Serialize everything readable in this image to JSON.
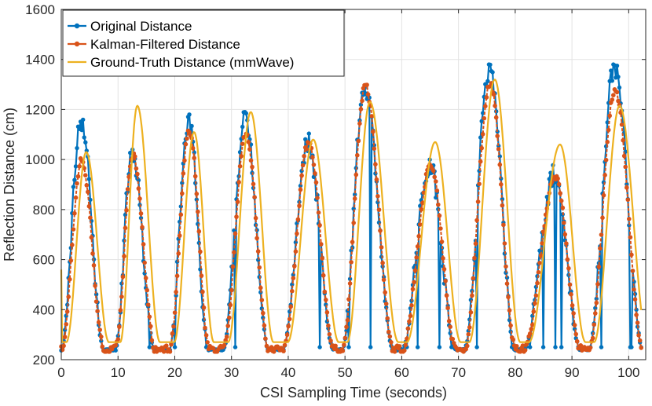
{
  "chart_data": {
    "type": "line",
    "xlabel": "CSI Sampling Time (seconds)",
    "ylabel": "Reflection Distance (cm)",
    "xlim": [
      0,
      103
    ],
    "ylim": [
      200,
      1600
    ],
    "xticks": [
      0,
      10,
      20,
      30,
      40,
      50,
      60,
      70,
      80,
      90,
      100
    ],
    "yticks": [
      200,
      400,
      600,
      800,
      1000,
      1200,
      1400,
      1600
    ],
    "grid": true,
    "legend_position": "top-left",
    "cycles": [
      {
        "start": 0.0,
        "peak": 3.5,
        "end": 7.5,
        "orig": 1160,
        "kal": 1000,
        "gt": 1000
      },
      {
        "start": 9.5,
        "peak": 12.5,
        "end": 16.5,
        "orig": 1020,
        "kal": 1020,
        "gt": 1185
      },
      {
        "start": 19.0,
        "peak": 22.5,
        "end": 26.0,
        "orig": 1140,
        "kal": 1120,
        "gt": 1080
      },
      {
        "start": 28.5,
        "peak": 32.5,
        "end": 36.5,
        "orig": 1165,
        "kal": 1110,
        "gt": 1160
      },
      {
        "start": 39.0,
        "peak": 43.5,
        "end": 48.0,
        "orig": 1070,
        "kal": 1065,
        "gt": 1050
      },
      {
        "start": 49.5,
        "peak": 53.5,
        "end": 58.5,
        "orig": 1300,
        "kal": 1300,
        "gt": 1200
      },
      {
        "start": 60.0,
        "peak": 65.0,
        "end": 69.5,
        "orig": 980,
        "kal": 975,
        "gt": 1040
      },
      {
        "start": 71.0,
        "peak": 75.5,
        "end": 80.0,
        "orig": 1370,
        "kal": 1310,
        "gt": 1290
      },
      {
        "start": 81.5,
        "peak": 87.0,
        "end": 91.5,
        "orig": 940,
        "kal": 930,
        "gt": 1030
      },
      {
        "start": 93.0,
        "peak": 97.5,
        "end": 102.5,
        "orig": 1370,
        "kal": 1280,
        "gt": 1185
      }
    ],
    "series": [
      {
        "name": "Original Distance",
        "color": "#0072BD",
        "marker": "circle"
      },
      {
        "name": "Kalman-Filtered Distance",
        "color": "#D95319",
        "marker": "circle"
      },
      {
        "name": "Ground-Truth Distance (mmWave)",
        "color": "#EDB120",
        "marker": "none"
      }
    ]
  }
}
